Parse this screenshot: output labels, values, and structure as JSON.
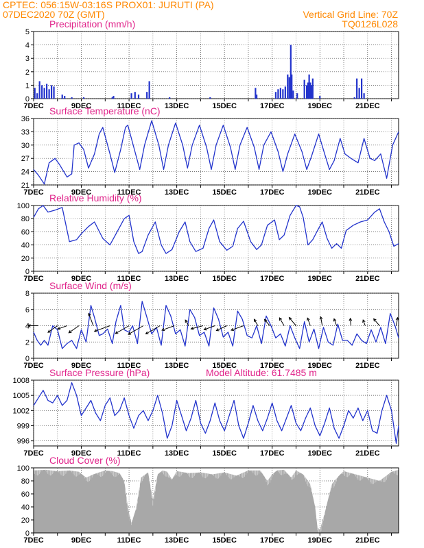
{
  "header": {
    "line1": "CPTEC:   056:15W-03:16S   PROX01: JURUTI (PA)",
    "line2": "07DEC2020 70Z (GMT)",
    "grid_note": "Vertical Grid Line: 70Z",
    "code": "TQ0126L028"
  },
  "colors": {
    "line": "#2233cc",
    "title": "#e0238a",
    "header": "#ff8800",
    "cloud": "#a8a8a8"
  },
  "chart_data": [
    {
      "id": "precip",
      "type": "bar",
      "title": "Precipitation (mm/h)",
      "ylim": [
        0,
        5
      ],
      "yticks": [
        0,
        1,
        2,
        3,
        4,
        5
      ],
      "xticks": [
        "7DEC",
        "9DEC",
        "11DEC",
        "13DEC",
        "15DEC",
        "17DEC",
        "19DEC",
        "21DEC"
      ],
      "x_day_range": [
        7,
        22.3
      ],
      "x": [
        7.05,
        7.15,
        7.25,
        7.35,
        7.45,
        7.55,
        7.65,
        7.75,
        7.85,
        8.2,
        8.3,
        8.6,
        9.1,
        10.3,
        10.35,
        11.1,
        11.25,
        11.4,
        11.75,
        11.85,
        12.7,
        14.4,
        16.3,
        16.35,
        17.15,
        17.25,
        17.35,
        17.45,
        17.55,
        17.65,
        17.72,
        17.78,
        17.82,
        17.88,
        18.05,
        18.35,
        18.45,
        18.5,
        18.55,
        18.6,
        18.65,
        18.7,
        19.0,
        20.45,
        20.55,
        20.65,
        20.75,
        20.85
      ],
      "values": [
        0.8,
        0.4,
        1.3,
        1.0,
        0.8,
        1.1,
        0.7,
        1.0,
        0.9,
        0.3,
        0.2,
        0.1,
        0.1,
        0.1,
        0.2,
        0.4,
        0.5,
        0.3,
        0.5,
        1.3,
        0.1,
        0.1,
        0.8,
        0.3,
        0.5,
        0.7,
        0.8,
        0.7,
        0.9,
        1.8,
        1.6,
        4.0,
        1.8,
        0.6,
        0.4,
        1.4,
        1.0,
        1.2,
        1.8,
        1.2,
        1.0,
        1.5,
        0.2,
        0.1,
        1.5,
        0.8,
        1.5,
        0.4
      ]
    },
    {
      "id": "temp",
      "type": "line",
      "title": "Surface Temperature (nC)",
      "ylim": [
        21,
        36
      ],
      "yticks": [
        21,
        24,
        27,
        30,
        33,
        36
      ],
      "xticks": [
        "7DEC",
        "9DEC",
        "11DEC",
        "13DEC",
        "15DEC",
        "17DEC",
        "19DEC",
        "21DEC"
      ],
      "x_day_range": [
        7,
        22.3
      ],
      "x": [
        7.0,
        7.2,
        7.45,
        7.65,
        7.9,
        8.1,
        8.4,
        8.6,
        8.7,
        8.9,
        9.1,
        9.3,
        9.55,
        9.75,
        9.9,
        10.2,
        10.4,
        10.65,
        10.85,
        10.95,
        11.2,
        11.45,
        11.65,
        11.95,
        12.25,
        12.45,
        12.65,
        12.95,
        13.25,
        13.45,
        13.65,
        13.95,
        14.25,
        14.45,
        14.65,
        14.95,
        15.25,
        15.45,
        15.65,
        15.95,
        16.25,
        16.45,
        16.65,
        16.95,
        17.25,
        17.45,
        17.65,
        17.95,
        18.25,
        18.45,
        18.65,
        18.95,
        19.2,
        19.4,
        19.6,
        19.85,
        20.05,
        20.3,
        20.6,
        20.85,
        21.1,
        21.3,
        21.55,
        21.8,
        22.05,
        22.3
      ],
      "values": [
        24.5,
        23.2,
        21.2,
        26.0,
        27.0,
        25.5,
        22.8,
        23.5,
        30.0,
        30.5,
        29.0,
        24.8,
        28.0,
        32.5,
        34.0,
        28.0,
        23.8,
        29.0,
        34.0,
        34.5,
        29.5,
        24.5,
        30.0,
        35.5,
        30.0,
        24.5,
        30.0,
        35.0,
        30.0,
        24.8,
        30.0,
        34.5,
        29.5,
        24.5,
        30.0,
        34.5,
        29.5,
        24.5,
        30.0,
        34.0,
        29.5,
        24.5,
        30.0,
        33.0,
        28.5,
        24.0,
        28.0,
        32.5,
        28.5,
        24.5,
        27.5,
        32.5,
        28.0,
        24.5,
        26.5,
        31.5,
        28.0,
        27.0,
        26.0,
        31.5,
        27.0,
        26.5,
        28.0,
        22.5,
        30.0,
        33.0
      ]
    },
    {
      "id": "rh",
      "type": "line",
      "title": "Relative Humidity (%)",
      "ylim": [
        0,
        100
      ],
      "yticks": [
        0,
        20,
        40,
        60,
        80,
        100
      ],
      "xticks": [
        "7DEC",
        "9DEC",
        "11DEC",
        "13DEC",
        "15DEC",
        "17DEC",
        "19DEC",
        "21DEC"
      ],
      "x_day_range": [
        7,
        22.3
      ],
      "x": [
        7.0,
        7.2,
        7.4,
        7.6,
        7.9,
        8.2,
        8.5,
        8.8,
        9.0,
        9.3,
        9.55,
        9.9,
        10.2,
        10.5,
        10.8,
        11.0,
        11.2,
        11.4,
        11.55,
        11.8,
        12.1,
        12.35,
        12.55,
        12.8,
        13.1,
        13.35,
        13.55,
        13.8,
        14.1,
        14.35,
        14.55,
        14.8,
        15.1,
        15.35,
        15.55,
        15.8,
        16.1,
        16.35,
        16.55,
        16.8,
        17.1,
        17.3,
        17.5,
        17.75,
        18.0,
        18.15,
        18.3,
        18.5,
        18.7,
        18.9,
        19.1,
        19.3,
        19.5,
        19.7,
        19.9,
        20.1,
        20.4,
        20.7,
        21.0,
        21.3,
        21.5,
        21.7,
        21.9,
        22.1,
        22.3
      ],
      "values": [
        82,
        95,
        100,
        90,
        93,
        97,
        45,
        48,
        57,
        68,
        75,
        50,
        40,
        60,
        80,
        85,
        45,
        27,
        30,
        55,
        75,
        40,
        27,
        33,
        60,
        75,
        45,
        30,
        35,
        65,
        78,
        45,
        32,
        38,
        65,
        76,
        45,
        33,
        40,
        70,
        78,
        48,
        55,
        85,
        100,
        98,
        82,
        40,
        48,
        62,
        75,
        50,
        35,
        42,
        35,
        62,
        70,
        75,
        78,
        90,
        95,
        75,
        60,
        38,
        42
      ]
    },
    {
      "id": "wind",
      "type": "line",
      "title": "Surface Wind (m/s)",
      "ylim": [
        0,
        8
      ],
      "yticks": [
        0,
        2,
        4,
        6,
        8
      ],
      "xticks": [
        "7DEC",
        "9DEC",
        "11DEC",
        "13DEC",
        "15DEC",
        "17DEC",
        "19DEC",
        "21DEC"
      ],
      "x_day_range": [
        7,
        22.3
      ],
      "x": [
        7.0,
        7.15,
        7.3,
        7.45,
        7.6,
        7.8,
        8.0,
        8.2,
        8.4,
        8.6,
        8.8,
        9.0,
        9.2,
        9.4,
        9.55,
        9.75,
        9.9,
        10.1,
        10.3,
        10.45,
        10.65,
        10.8,
        11.0,
        11.15,
        11.35,
        11.55,
        11.75,
        11.95,
        12.15,
        12.35,
        12.55,
        12.75,
        12.95,
        13.15,
        13.35,
        13.55,
        13.75,
        13.95,
        14.15,
        14.35,
        14.55,
        14.75,
        14.95,
        15.15,
        15.35,
        15.55,
        15.75,
        15.95,
        16.15,
        16.35,
        16.55,
        16.75,
        16.95,
        17.15,
        17.35,
        17.55,
        17.75,
        17.95,
        18.15,
        18.35,
        18.55,
        18.75,
        18.95,
        19.15,
        19.35,
        19.55,
        19.75,
        19.95,
        20.15,
        20.35,
        20.55,
        20.75,
        20.95,
        21.15,
        21.35,
        21.55,
        21.75,
        21.95,
        22.15,
        22.3
      ],
      "values": [
        3.2,
        2.2,
        1.6,
        2.2,
        1.6,
        4.0,
        3.5,
        1.2,
        1.8,
        2.2,
        1.2,
        3.5,
        2.0,
        6.5,
        5.0,
        2.8,
        3.0,
        3.6,
        1.8,
        4.5,
        6.5,
        3.5,
        3.2,
        4.0,
        1.8,
        7.0,
        5.0,
        3.0,
        3.8,
        1.6,
        6.5,
        5.2,
        3.0,
        3.5,
        1.5,
        6.0,
        5.0,
        2.8,
        3.2,
        1.5,
        6.2,
        4.8,
        2.6,
        3.2,
        1.5,
        5.8,
        4.8,
        2.8,
        2.5,
        4.0,
        1.8,
        5.2,
        4.0,
        2.5,
        3.0,
        1.5,
        4.0,
        2.5,
        1.2,
        4.5,
        2.0,
        3.6,
        1.2,
        3.8,
        2.0,
        1.6,
        4.2,
        2.2,
        2.2,
        1.6,
        3.0,
        2.2,
        1.8,
        3.5,
        2.0,
        3.8,
        1.8,
        5.5,
        4.0,
        2.5
      ],
      "vectors_days": [
        7.2,
        8.0,
        8.4,
        8.9,
        9.5,
        10.2,
        11.0,
        11.6,
        12.3,
        12.9,
        13.5,
        14.1,
        14.6,
        15.1,
        15.8,
        16.4,
        16.9,
        17.5,
        18.0,
        18.6,
        19.1,
        19.7,
        20.3,
        20.9,
        21.5,
        22.2
      ],
      "vectors_angle_deg": [
        180,
        215,
        200,
        215,
        110,
        200,
        210,
        210,
        210,
        200,
        120,
        195,
        200,
        205,
        200,
        120,
        130,
        120,
        130,
        110,
        100,
        110,
        95,
        110,
        130,
        80
      ],
      "vectors_len": [
        2.5,
        2.8,
        2.4,
        3.0,
        3.2,
        4.0,
        3.8,
        4.2,
        4.0,
        3.2,
        1.6,
        3.0,
        2.8,
        2.8,
        3.2,
        1.8,
        2.0,
        2.2,
        2.6,
        2.0,
        2.2,
        1.8,
        1.8,
        1.5,
        2.2,
        2.0
      ]
    },
    {
      "id": "pressure",
      "type": "line",
      "title": "Surface Pressure (hPa)",
      "subtitle": "Model Altitude: 61.7485 m",
      "ylim": [
        995,
        1008
      ],
      "yticks": [
        996,
        999,
        1002,
        1005,
        1008
      ],
      "xticks": [
        "7DEC",
        "9DEC",
        "11DEC",
        "13DEC",
        "15DEC",
        "17DEC",
        "19DEC",
        "21DEC"
      ],
      "x_day_range": [
        7,
        22.3
      ],
      "x": [
        7.0,
        7.2,
        7.4,
        7.6,
        7.8,
        8.0,
        8.2,
        8.4,
        8.6,
        8.8,
        9.0,
        9.2,
        9.4,
        9.6,
        9.8,
        10.0,
        10.2,
        10.4,
        10.6,
        10.8,
        11.0,
        11.2,
        11.4,
        11.6,
        11.8,
        12.0,
        12.2,
        12.4,
        12.6,
        12.8,
        13.0,
        13.2,
        13.4,
        13.6,
        13.8,
        14.0,
        14.2,
        14.4,
        14.6,
        14.8,
        15.0,
        15.2,
        15.4,
        15.6,
        15.8,
        16.0,
        16.2,
        16.4,
        16.6,
        16.8,
        17.0,
        17.2,
        17.4,
        17.6,
        17.8,
        18.0,
        18.2,
        18.4,
        18.6,
        18.8,
        19.0,
        19.2,
        19.4,
        19.6,
        19.8,
        20.0,
        20.2,
        20.4,
        20.6,
        20.8,
        21.0,
        21.2,
        21.4,
        21.6,
        21.8,
        22.0,
        22.2,
        22.3
      ],
      "values": [
        1003.0,
        1004.5,
        1006.0,
        1004.0,
        1003.5,
        1005.0,
        1003.0,
        1004.0,
        1007.5,
        1005.0,
        1001.0,
        1002.5,
        1004.0,
        1001.5,
        1000.0,
        1003.0,
        1004.5,
        1001.0,
        1002.0,
        1004.5,
        1001.0,
        998.5,
        1001.0,
        1002.0,
        1000.0,
        1002.0,
        1005.0,
        1001.5,
        996.5,
        999.0,
        1004.0,
        1001.0,
        998.0,
        1000.5,
        1004.0,
        999.5,
        997.5,
        1000.0,
        1003.5,
        1000.0,
        998.0,
        1001.0,
        1004.0,
        999.0,
        996.5,
        999.5,
        1003.0,
        1000.0,
        998.0,
        1000.5,
        1003.5,
        1000.0,
        998.0,
        1000.5,
        1003.0,
        999.5,
        998.0,
        1000.5,
        1002.5,
        999.0,
        997.0,
        999.5,
        1002.5,
        998.5,
        996.5,
        999.0,
        1002.0,
        1000.5,
        1002.5,
        1000.0,
        1002.0,
        998.0,
        997.5,
        1002.0,
        1005.0,
        1002.0,
        995.5,
        999.0
      ]
    },
    {
      "id": "cloud",
      "type": "area",
      "title": "Cloud Cover (%)",
      "ylim": [
        0,
        100
      ],
      "yticks": [
        0,
        20,
        40,
        60,
        80,
        100
      ],
      "xticks": [
        "7DEC",
        "9DEC",
        "11DEC",
        "13DEC",
        "15DEC",
        "17DEC",
        "19DEC",
        "21DEC"
      ],
      "x_day_range": [
        7,
        22.3
      ],
      "x": [
        7.0,
        7.5,
        8.0,
        8.5,
        8.9,
        9.2,
        9.5,
        10.0,
        10.3,
        10.6,
        10.8,
        10.95,
        11.1,
        11.3,
        11.5,
        11.8,
        12.0,
        12.2,
        12.4,
        12.6,
        12.8,
        13.0,
        13.5,
        14.0,
        14.5,
        15.0,
        15.5,
        16.0,
        16.5,
        16.8,
        17.0,
        17.2,
        17.5,
        17.8,
        18.0,
        18.3,
        18.6,
        18.8,
        18.9,
        19.0,
        19.2,
        19.5,
        19.8,
        20.0,
        20.5,
        21.0,
        21.5,
        22.0,
        22.3
      ],
      "values": [
        96,
        97,
        95,
        96,
        94,
        85,
        90,
        96,
        95,
        92,
        80,
        40,
        15,
        38,
        85,
        93,
        50,
        90,
        96,
        94,
        82,
        95,
        92,
        93,
        90,
        93,
        88,
        96,
        96,
        80,
        90,
        96,
        97,
        85,
        96,
        90,
        75,
        40,
        8,
        5,
        30,
        75,
        88,
        95,
        90,
        85,
        80,
        94,
        97
      ]
    }
  ]
}
